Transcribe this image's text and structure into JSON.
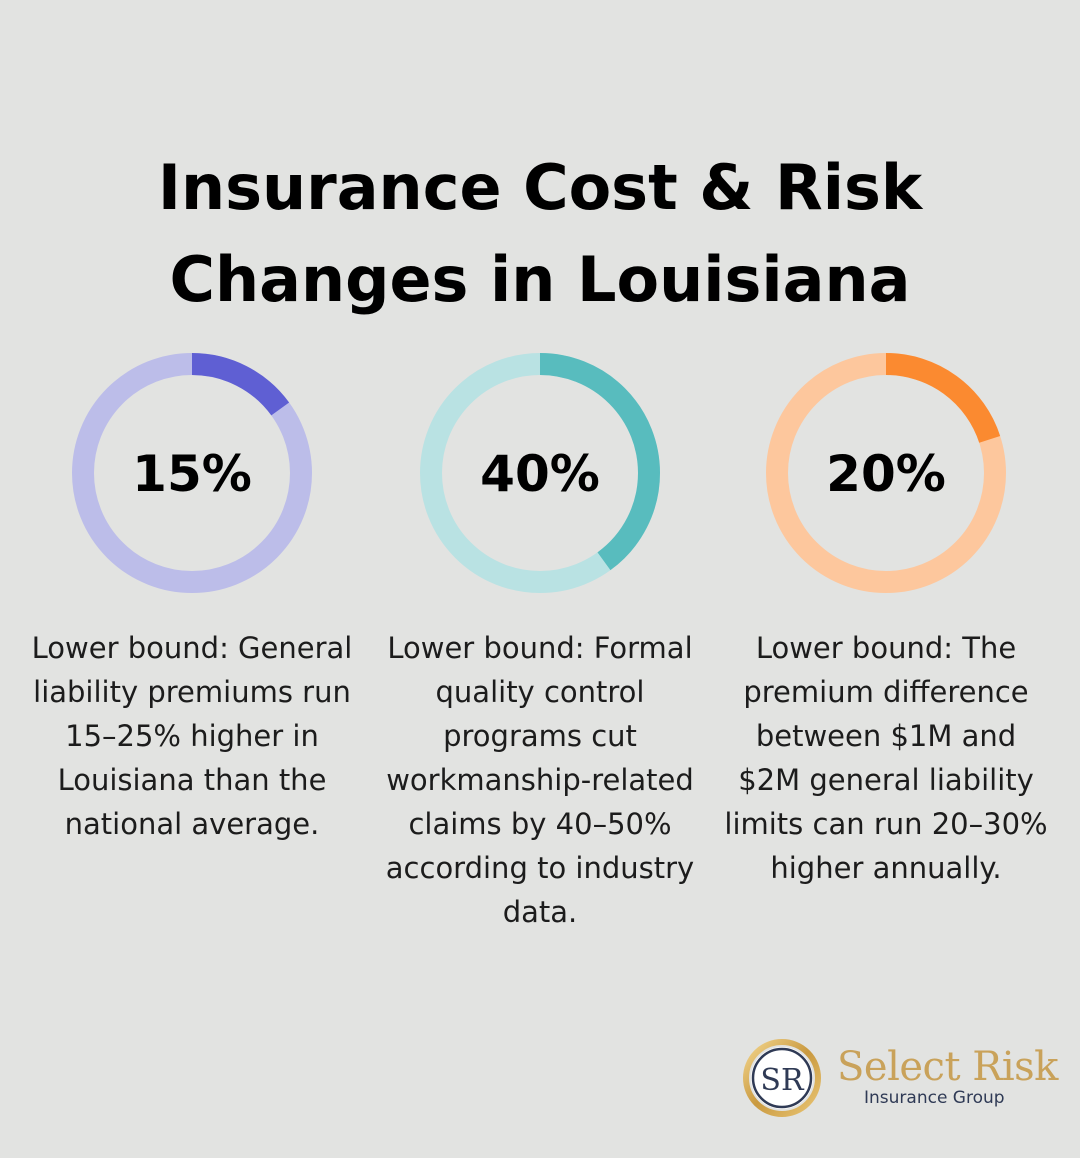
{
  "title_lines": [
    "Insurance Cost & Risk",
    "Changes in Louisiana"
  ],
  "chart_data": [
    {
      "type": "pie",
      "value": 15,
      "label": "15%",
      "caption": "Lower bound: General liability premiums run 15–25% higher in Louisiana than the national average.",
      "color": "#5f5fd3",
      "track_color": "#bcbde9"
    },
    {
      "type": "pie",
      "value": 40,
      "label": "40%",
      "caption": "Lower bound: Formal quality control programs cut workmanship-related claims by 40–50% according to industry data.",
      "color": "#58bcbe",
      "track_color": "#b9e2e3"
    },
    {
      "type": "pie",
      "value": 20,
      "label": "20%",
      "caption": "Lower bound: The premium difference between $1M and $2M general liability limits can run 20–30% higher annually.",
      "color": "#fb8a30",
      "track_color": "#fdc79d"
    }
  ],
  "logo": {
    "monogram": "SR",
    "name": "Select Risk",
    "subtitle": "Insurance Group"
  }
}
